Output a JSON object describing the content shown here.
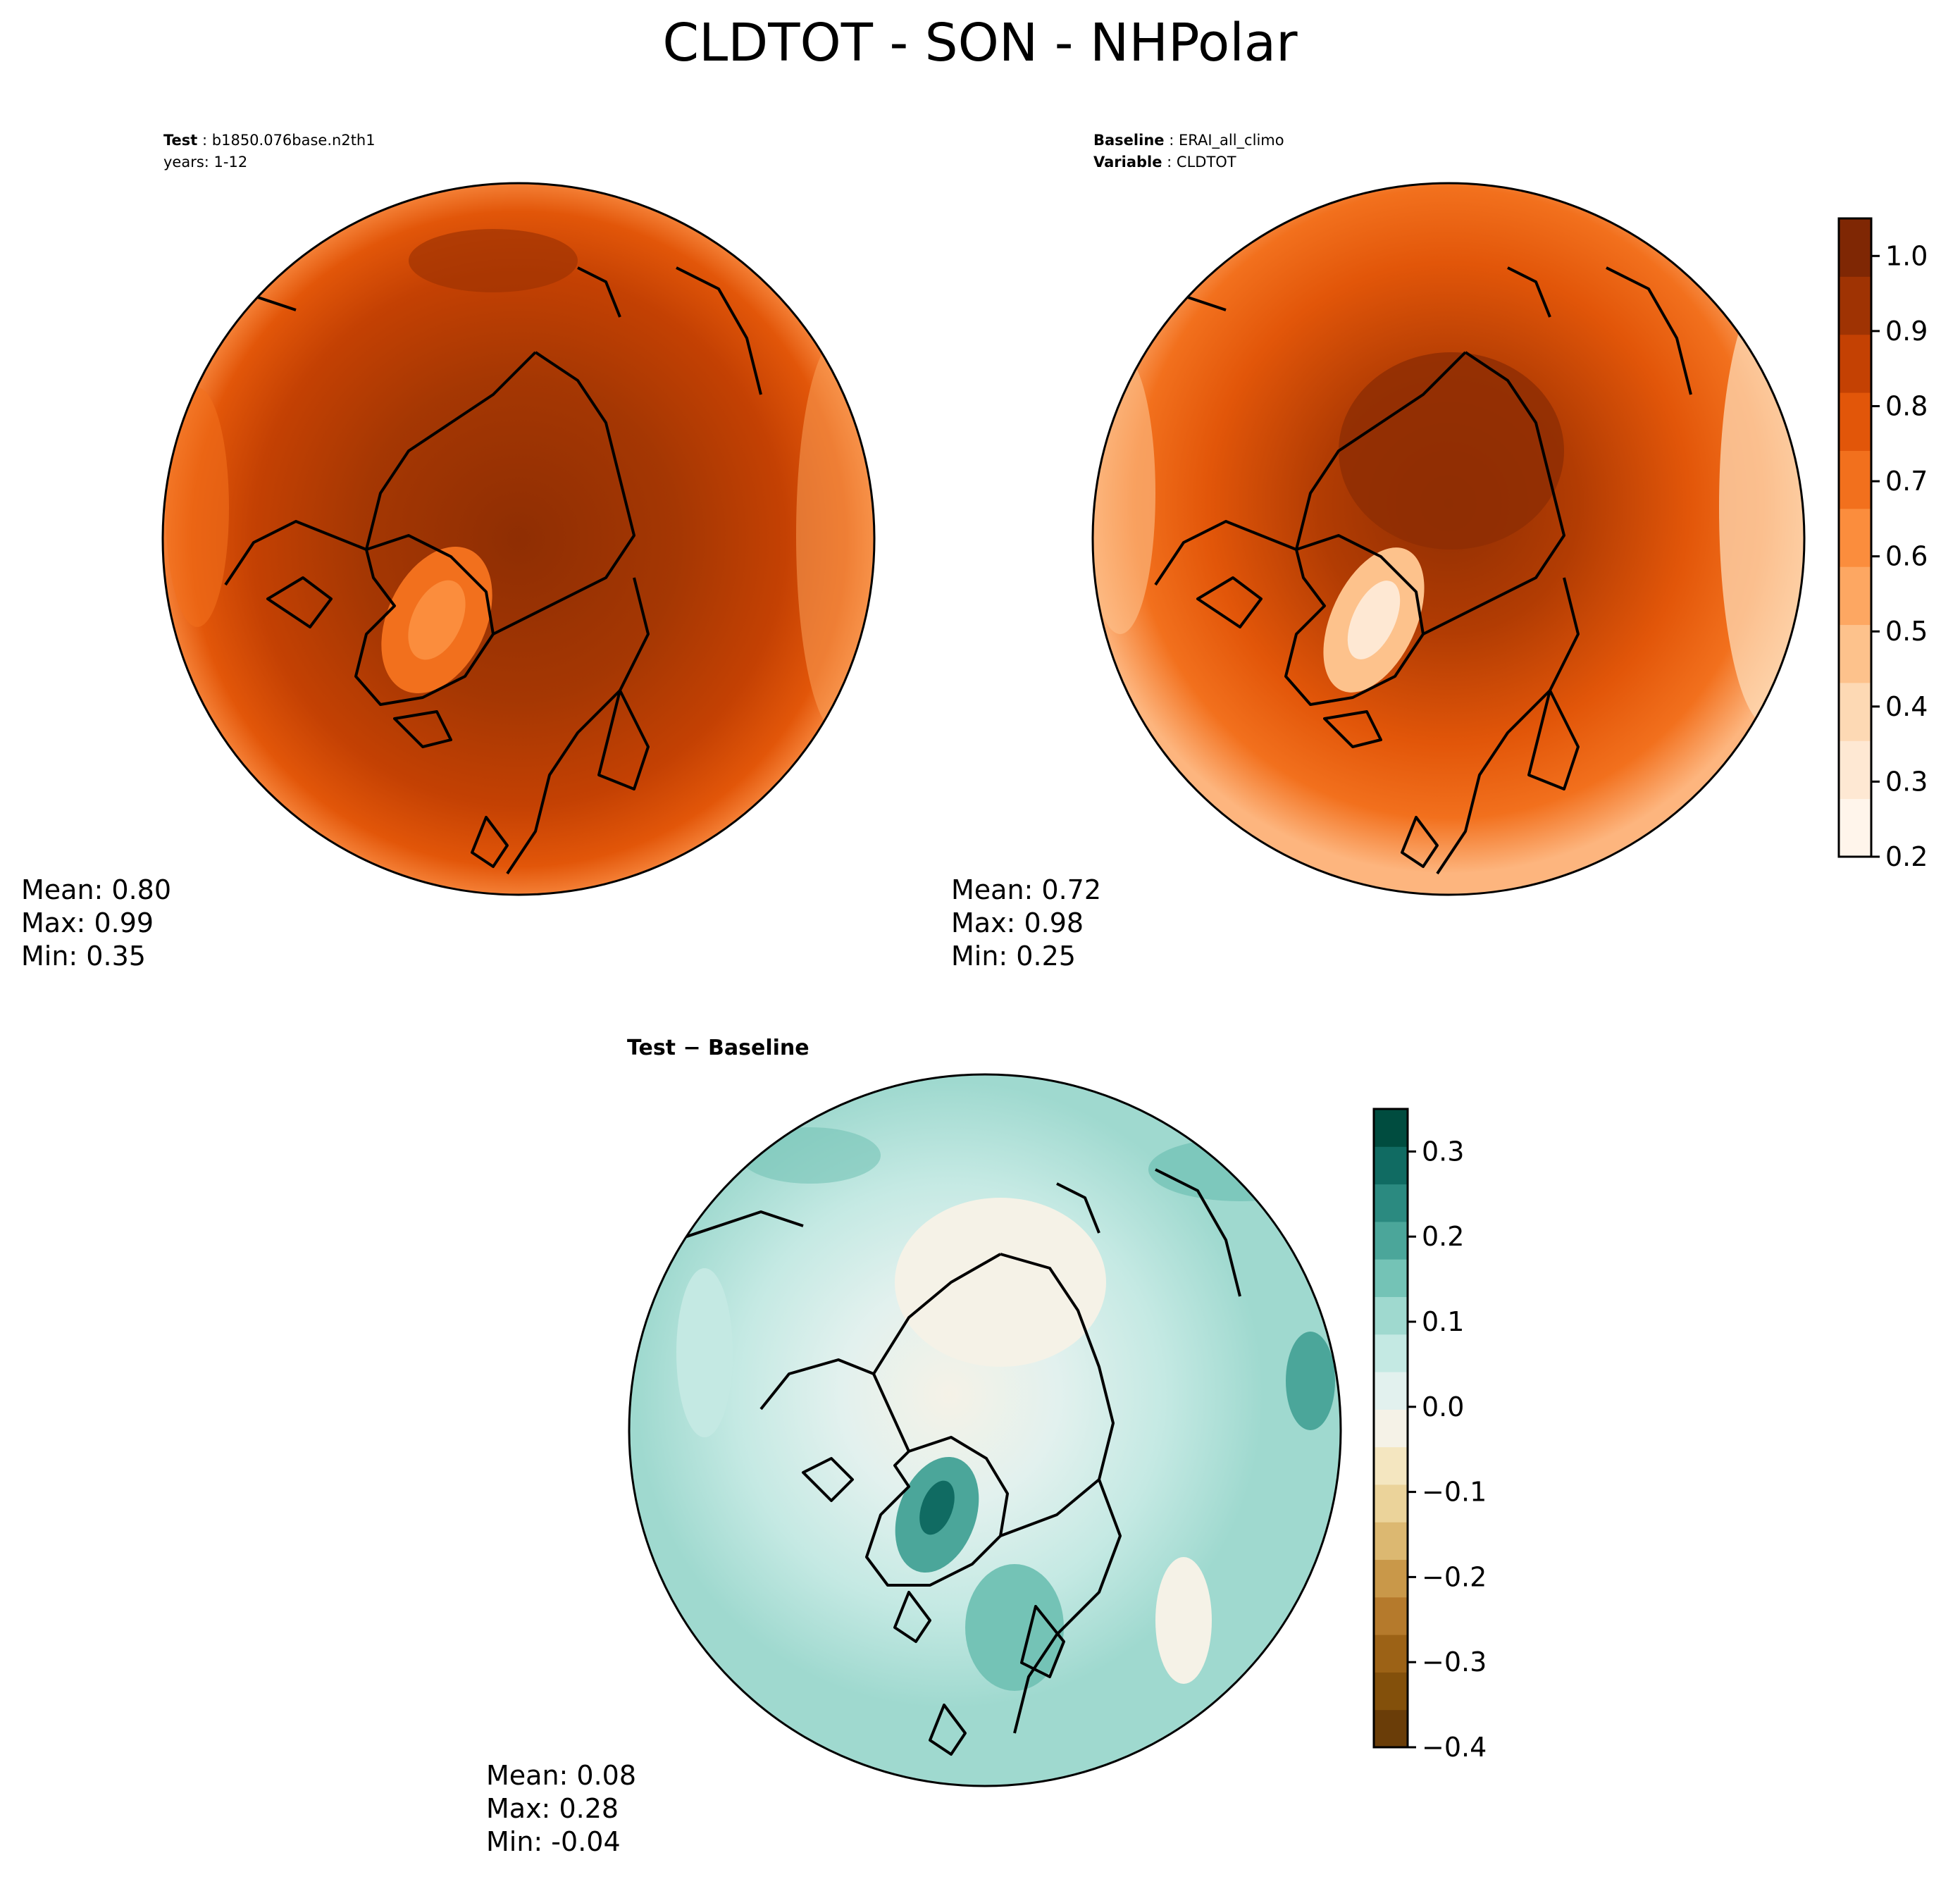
{
  "title": "CLDTOT - SON - NHPolar",
  "panels": {
    "test": {
      "label_key": "Test",
      "label_val": "b1850.076base.n2th1",
      "line2": "years: 1-12",
      "stats": {
        "mean": "Mean:  0.80",
        "max": "Max:  0.99",
        "min": "Min:  0.35"
      }
    },
    "baseline": {
      "label_key": "Baseline",
      "label_val": "ERAI_all_climo",
      "line2_key": "Variable",
      "line2_val": "CLDTOT",
      "stats": {
        "mean": "Mean:  0.72",
        "max": "Max:  0.98",
        "min": "Min:  0.25"
      }
    },
    "diff": {
      "title": "Test − Baseline",
      "stats": {
        "mean": "Mean:  0.08",
        "max": "Max:  0.28",
        "min": "Min: -0.04"
      }
    }
  },
  "colorbars": {
    "oranges": {
      "ticks": [
        "0.2",
        "0.3",
        "0.4",
        "0.5",
        "0.6",
        "0.7",
        "0.8",
        "0.9",
        "1.0"
      ],
      "range": [
        0.2,
        1.05
      ],
      "colors": [
        "#fff5eb",
        "#fee8d3",
        "#fdd9b4",
        "#fdc28c",
        "#fda762",
        "#fb8d3d",
        "#f2701d",
        "#e25609",
        "#c44103",
        "#9f3303",
        "#7f2704"
      ]
    },
    "brbg": {
      "ticks": [
        "−0.4",
        "−0.3",
        "−0.2",
        "−0.1",
        "0.0",
        "0.1",
        "0.2",
        "0.3"
      ],
      "range": [
        -0.4,
        0.35
      ],
      "colors": [
        "#6a3d08",
        "#83500b",
        "#9c6216",
        "#b57a2c",
        "#c99849",
        "#dcb871",
        "#ebd39a",
        "#f4e6c0",
        "#f5f2e7",
        "#e2f1ee",
        "#c4e9e3",
        "#9fd9cf",
        "#74c3b6",
        "#4ba69a",
        "#2b8a80",
        "#106b62",
        "#004c3f"
      ]
    }
  },
  "chart_data": [
    {
      "type": "heatmap",
      "title": "Test : b1850.076base.n2th1, years: 1-12",
      "variable": "CLDTOT",
      "season": "SON",
      "region": "NHPolar",
      "colorbar_range": [
        0.2,
        1.05
      ],
      "stats": {
        "mean": 0.8,
        "max": 0.99,
        "min": 0.35
      },
      "description_note": ""
    },
    {
      "type": "heatmap",
      "title": "Baseline : ERAI_all_climo, Variable : CLDTOT",
      "colorbar_range": [
        0.2,
        1.05
      ],
      "stats": {
        "mean": 0.72,
        "max": 0.98,
        "min": 0.25
      }
    },
    {
      "type": "heatmap",
      "title": "Test − Baseline",
      "colorbar_range": [
        -0.4,
        0.35
      ],
      "stats": {
        "mean": 0.08,
        "max": 0.28,
        "min": -0.04
      }
    }
  ]
}
